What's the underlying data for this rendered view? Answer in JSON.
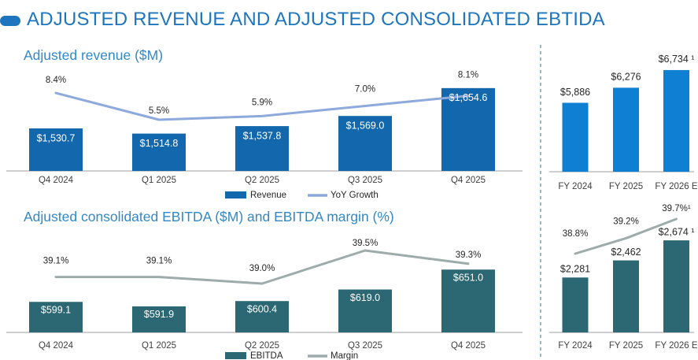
{
  "header": {
    "title": "ADJUSTED REVENUE AND ADJUSTED CONSOLIDATED EBTIDA"
  },
  "colors": {
    "title_blue": "#1D76BD",
    "subtitle_blue": "#3288C6",
    "revenue_bar": "#1368AD",
    "fy_revenue_bar": "#0E7FD2",
    "ebitda_bar": "#2B6873",
    "yoy_line_blue": "#8EA9DB",
    "margin_line_gray": "#9EABAB",
    "axis_gray": "#BFBFBF",
    "label_dark": "#262626",
    "category_gray": "#404040",
    "divider_blue": "#8FBBC9"
  },
  "chart_data": [
    {
      "id": "revenue_quarterly",
      "type": "bar+line",
      "title": "Adjusted revenue ($M)",
      "categories": [
        "Q4 2024",
        "Q1 2025",
        "Q2 2025",
        "Q3 2025",
        "Q4 2025"
      ],
      "series": [
        {
          "name": "Revenue",
          "type": "bar",
          "values": [
            1530.7,
            1514.8,
            1537.8,
            1569.0,
            1654.6
          ],
          "labels": [
            "$1,530.7",
            "$1,514.8",
            "$1,537.8",
            "$1,569.0",
            "$1,654.6"
          ]
        },
        {
          "name": "YoY Growth",
          "type": "line",
          "values": [
            8.4,
            5.5,
            5.9,
            7.0,
            8.1
          ],
          "labels": [
            "8.4%",
            "5.5%",
            "5.9%",
            "7.0%",
            "8.1%"
          ]
        }
      ],
      "legend": [
        "Revenue",
        "YoY Growth"
      ],
      "legend_position": "bottom",
      "bar_axis_range": [
        1400,
        1700
      ],
      "grid": false
    },
    {
      "id": "revenue_full_year",
      "type": "bar",
      "categories": [
        "FY 2024",
        "FY 2025",
        "FY 2026 E"
      ],
      "series": [
        {
          "name": "Adjusted revenue",
          "type": "bar",
          "values": [
            5886,
            6276,
            6734
          ],
          "labels": [
            "$5,886",
            "$6,276",
            "$6,734 ¹"
          ]
        }
      ],
      "bar_axis_range": [
        4100,
        7000
      ],
      "grid": false
    },
    {
      "id": "ebitda_quarterly",
      "type": "bar+line",
      "title": "Adjusted consolidated EBITDA ($M) and EBITDA margin (%)",
      "categories": [
        "Q4 2024",
        "Q1 2025",
        "Q2 2025",
        "Q3 2025",
        "Q4 2025"
      ],
      "series": [
        {
          "name": "EBITDA",
          "type": "bar",
          "values": [
            599.1,
            591.9,
            600.4,
            619.0,
            651.0
          ],
          "labels": [
            "$599.1",
            "$591.9",
            "$600.4",
            "$619.0",
            "$651.0"
          ]
        },
        {
          "name": "Margin",
          "type": "line",
          "values": [
            39.1,
            39.1,
            39.0,
            39.5,
            39.3
          ],
          "labels": [
            "39.1%",
            "39.1%",
            "39.0%",
            "39.5%",
            "39.3%"
          ]
        }
      ],
      "legend": [
        "EBITDA",
        "Margin"
      ],
      "legend_position": "bottom",
      "bar_axis_range": [
        550,
        700
      ],
      "grid": false
    },
    {
      "id": "ebitda_full_year",
      "type": "bar+line",
      "categories": [
        "FY 2024",
        "FY 2025",
        "FY 2026 E"
      ],
      "series": [
        {
          "name": "EBITDA",
          "type": "bar",
          "values": [
            2281,
            2462,
            2674
          ],
          "labels": [
            "$2,281",
            "$2,462",
            "$2,674 ¹"
          ]
        },
        {
          "name": "Margin",
          "type": "line",
          "values": [
            38.8,
            39.2,
            39.7
          ],
          "labels": [
            "38.8%",
            "39.2%",
            "39.7%¹"
          ]
        }
      ],
      "bar_axis_range": [
        1700,
        2900
      ],
      "grid": false
    }
  ]
}
